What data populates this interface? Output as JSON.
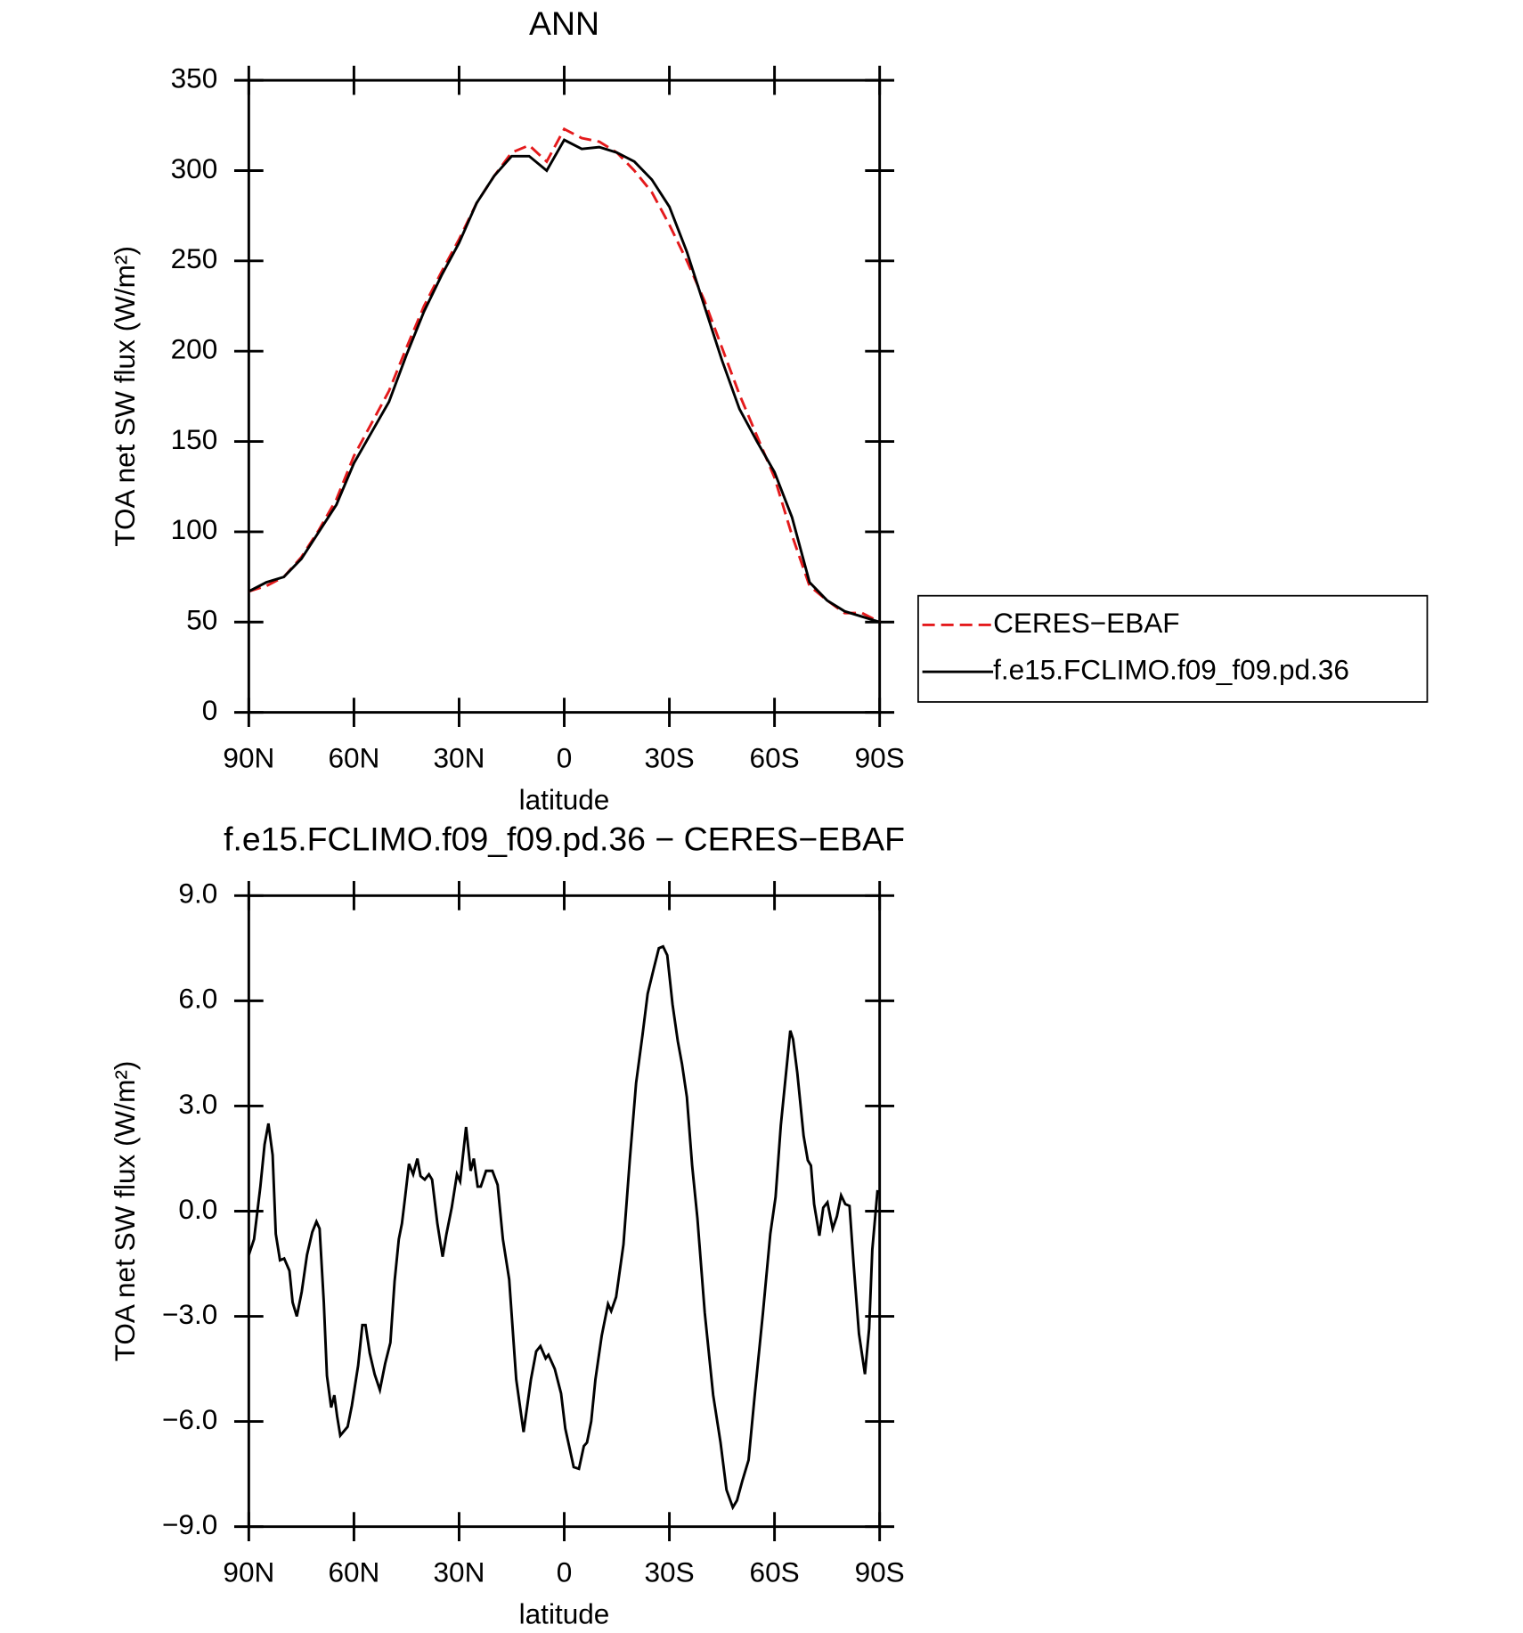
{
  "chart_data": [
    {
      "type": "line",
      "title": "ANN",
      "xlabel": "latitude",
      "ylabel": "TOA net SW flux (W/m²)",
      "x": [
        90,
        85,
        80,
        75,
        70,
        65,
        60,
        55,
        50,
        45,
        40,
        35,
        30,
        25,
        20,
        15,
        10,
        5,
        0,
        -5,
        -10,
        -15,
        -20,
        -25,
        -30,
        -35,
        -40,
        -45,
        -50,
        -55,
        -60,
        -65,
        -70,
        -75,
        -80,
        -85,
        -90
      ],
      "xlim": [
        90,
        -90
      ],
      "xticks": [
        {
          "value": 90,
          "label": "90N"
        },
        {
          "value": 60,
          "label": "60N"
        },
        {
          "value": 30,
          "label": "30N"
        },
        0,
        {
          "value": -30,
          "label": "30S"
        },
        {
          "value": -60,
          "label": "60S"
        },
        {
          "value": -90,
          "label": "90S"
        }
      ],
      "ylim": [
        0,
        350
      ],
      "yticks": [
        0,
        50,
        100,
        150,
        200,
        250,
        300,
        350
      ],
      "legend": "outside-right",
      "series": [
        {
          "name": "CERES−EBAF",
          "color": "#e41a1c",
          "dash": true,
          "values": [
            67,
            70,
            75,
            86,
            101,
            118,
            142,
            160,
            178,
            202,
            225,
            244,
            262,
            282,
            297,
            310,
            314,
            305,
            323,
            318,
            316,
            310,
            300,
            288,
            270,
            250,
            228,
            202,
            176,
            153,
            130,
            98,
            70,
            62,
            55,
            55,
            50
          ]
        },
        {
          "name": "f.e15.FCLIMO.f09_f09.pd.36",
          "color": "#000000",
          "dash": false,
          "values": [
            67,
            72,
            75,
            85,
            100,
            115,
            138,
            155,
            172,
            198,
            222,
            242,
            260,
            282,
            297,
            308,
            308,
            300,
            317,
            312,
            313,
            310,
            305,
            295,
            280,
            255,
            225,
            195,
            168,
            150,
            133,
            108,
            72,
            62,
            56,
            53,
            50
          ]
        }
      ]
    },
    {
      "type": "line",
      "title": "f.e15.FCLIMO.f09_f09.pd.36 − CERES−EBAF",
      "xlabel": "latitude",
      "ylabel": "TOA net SW flux (W/m²)",
      "x": [
        90.0,
        88.5,
        86.7,
        85.5,
        84.4,
        83.2,
        82.3,
        81.1,
        79.9,
        78.4,
        77.5,
        76.3,
        74.9,
        73.4,
        71.9,
        70.7,
        69.8,
        68.6,
        67.7,
        66.5,
        65.6,
        64.8,
        63.9,
        61.8,
        60.6,
        58.8,
        57.6,
        56.7,
        55.5,
        54.1,
        52.6,
        51.1,
        49.6,
        48.4,
        47.2,
        46.3,
        45.4,
        44.3,
        43.1,
        41.9,
        41.0,
        39.8,
        38.6,
        37.7,
        36.2,
        34.7,
        33.6,
        32.1,
        30.6,
        29.7,
        28.0,
        26.7,
        25.8,
        24.7,
        23.8,
        22.3,
        20.5,
        19.0,
        17.5,
        15.7,
        13.7,
        11.6,
        9.5,
        8.0,
        6.8,
        5.3,
        4.5,
        2.7,
        0.9,
        -0.3,
        -1.5,
        -2.7,
        -4.2,
        -5.6,
        -6.5,
        -7.7,
        -8.9,
        -10.7,
        -12.5,
        -13.4,
        -14.8,
        -16.9,
        -18.7,
        -20.5,
        -22.3,
        -23.8,
        -25.5,
        -27.0,
        -28.2,
        -29.4,
        -30.9,
        -32.4,
        -33.6,
        -35.0,
        -36.5,
        -38.0,
        -40.1,
        -42.5,
        -44.6,
        -46.3,
        -48.1,
        -49.3,
        -50.8,
        -52.6,
        -54.4,
        -56.7,
        -58.8,
        -60.3,
        -61.8,
        -63.3,
        -64.5,
        -65.3,
        -66.5,
        -67.1,
        -68.3,
        -69.5,
        -70.4,
        -71.3,
        -72.8,
        -73.9,
        -75.1,
        -76.6,
        -77.8,
        -79.0,
        -80.2,
        -81.4,
        -82.6,
        -84.1,
        -85.8,
        -87.0,
        -87.9,
        -89.4
      ],
      "xlim": [
        90,
        -90
      ],
      "xticks": [
        {
          "value": 90,
          "label": "90N"
        },
        {
          "value": 60,
          "label": "60N"
        },
        {
          "value": 30,
          "label": "30N"
        },
        0,
        {
          "value": -30,
          "label": "30S"
        },
        {
          "value": -60,
          "label": "60S"
        },
        {
          "value": -90,
          "label": "90S"
        }
      ],
      "ylim": [
        -9,
        9
      ],
      "yticks": [
        {
          "value": -9,
          "label": "−9.0"
        },
        {
          "value": -6,
          "label": "−6.0"
        },
        {
          "value": -3,
          "label": "−3.0"
        },
        {
          "value": 0,
          "label": "0.0"
        },
        {
          "value": 3,
          "label": "3.0"
        },
        {
          "value": 6,
          "label": "6.0"
        },
        {
          "value": 9,
          "label": "9.0"
        }
      ],
      "series": [
        {
          "color": "#000000",
          "dash": false,
          "values": [
            -1.25,
            -0.8,
            0.7,
            1.9,
            2.5,
            1.6,
            -0.65,
            -1.4,
            -1.35,
            -1.7,
            -2.6,
            -3.0,
            -2.3,
            -1.25,
            -0.6,
            -0.3,
            -0.5,
            -2.6,
            -4.7,
            -5.6,
            -5.25,
            -5.85,
            -6.4,
            -6.15,
            -5.55,
            -4.4,
            -3.25,
            -3.25,
            -4.05,
            -4.65,
            -5.1,
            -4.35,
            -3.75,
            -2.0,
            -0.8,
            -0.35,
            0.4,
            1.35,
            1.05,
            1.5,
            1.0,
            0.9,
            1.05,
            0.9,
            -0.35,
            -1.3,
            -0.65,
            0.1,
            1.05,
            0.85,
            2.4,
            1.15,
            1.5,
            0.7,
            0.7,
            1.15,
            1.15,
            0.75,
            -0.8,
            -1.95,
            -4.8,
            -6.3,
            -4.8,
            -4.0,
            -3.85,
            -4.2,
            -4.1,
            -4.5,
            -5.2,
            -6.2,
            -6.75,
            -7.3,
            -7.35,
            -6.7,
            -6.6,
            -6.0,
            -4.8,
            -3.55,
            -2.65,
            -2.85,
            -2.45,
            -0.95,
            1.45,
            3.65,
            5.0,
            6.2,
            6.9,
            7.5,
            7.55,
            7.3,
            5.9,
            4.85,
            4.2,
            3.25,
            1.3,
            -0.2,
            -2.9,
            -5.25,
            -6.6,
            -7.95,
            -8.45,
            -8.25,
            -7.7,
            -7.1,
            -5.2,
            -2.9,
            -0.65,
            0.4,
            2.45,
            3.95,
            5.15,
            4.9,
            3.95,
            3.35,
            2.15,
            1.45,
            1.3,
            0.2,
            -0.7,
            0.1,
            0.25,
            -0.5,
            -0.15,
            0.45,
            0.2,
            0.15,
            -1.55,
            -3.5,
            -4.65,
            -3.35,
            -1.1,
            0.6
          ]
        }
      ]
    }
  ]
}
